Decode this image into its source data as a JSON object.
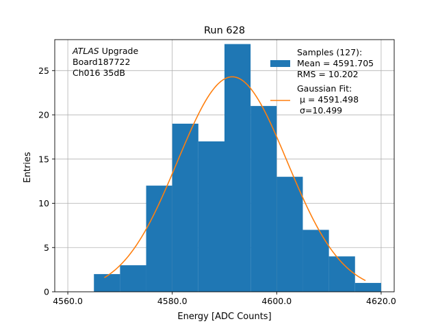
{
  "chart_data": {
    "type": "bar",
    "title": "Run 628",
    "xlabel": "Energy [ADC Counts]",
    "ylabel": "Entries",
    "xlim": [
      4557.5,
      4622.5
    ],
    "ylim": [
      0,
      28.5
    ],
    "xticks": [
      4560.0,
      4580.0,
      4600.0,
      4620.0
    ],
    "xtick_labels": [
      "4560.0",
      "4580.0",
      "4600.0",
      "4620.0"
    ],
    "yticks": [
      0,
      5,
      10,
      15,
      20,
      25
    ],
    "ytick_labels": [
      "0",
      "5",
      "10",
      "15",
      "20",
      "25"
    ],
    "grid": true,
    "bins": [
      {
        "x0": 4565,
        "x1": 4570,
        "count": 2
      },
      {
        "x0": 4570,
        "x1": 4575,
        "count": 3
      },
      {
        "x0": 4575,
        "x1": 4580,
        "count": 12
      },
      {
        "x0": 4580,
        "x1": 4585,
        "count": 19
      },
      {
        "x0": 4585,
        "x1": 4590,
        "count": 17
      },
      {
        "x0": 4590,
        "x1": 4595,
        "count": 28
      },
      {
        "x0": 4595,
        "x1": 4600,
        "count": 21
      },
      {
        "x0": 4600,
        "x1": 4605,
        "count": 13
      },
      {
        "x0": 4605,
        "x1": 4610,
        "count": 7
      },
      {
        "x0": 4610,
        "x1": 4615,
        "count": 4
      },
      {
        "x0": 4615,
        "x1": 4620,
        "count": 1
      }
    ],
    "fit": {
      "type": "gaussian",
      "mu": 4591.498,
      "sigma": 10.499,
      "amplitude": 24.3,
      "x_range": [
        4567,
        4617
      ]
    },
    "annotation": {
      "lines": [
        {
          "italic_part": "ATLAS",
          "rest": " Upgrade"
        },
        {
          "italic_part": "",
          "rest": " Board187722"
        },
        {
          "italic_part": "",
          "rest": " Ch016 35dB"
        }
      ]
    },
    "legend": {
      "placement": "top-right",
      "entries": [
        {
          "kind": "patch",
          "lines": [
            "Samples (127):",
            " Mean = 4591.705",
            " RMS = 10.202"
          ]
        },
        {
          "kind": "line",
          "lines": [
            "Gaussian Fit:",
            "μ = 4591.498",
            "σ=10.499"
          ]
        }
      ]
    },
    "colors": {
      "bars": "#1f77b4",
      "fit": "#ff7f0e",
      "grid": "#b0b0b0",
      "axes": "#000000"
    }
  }
}
